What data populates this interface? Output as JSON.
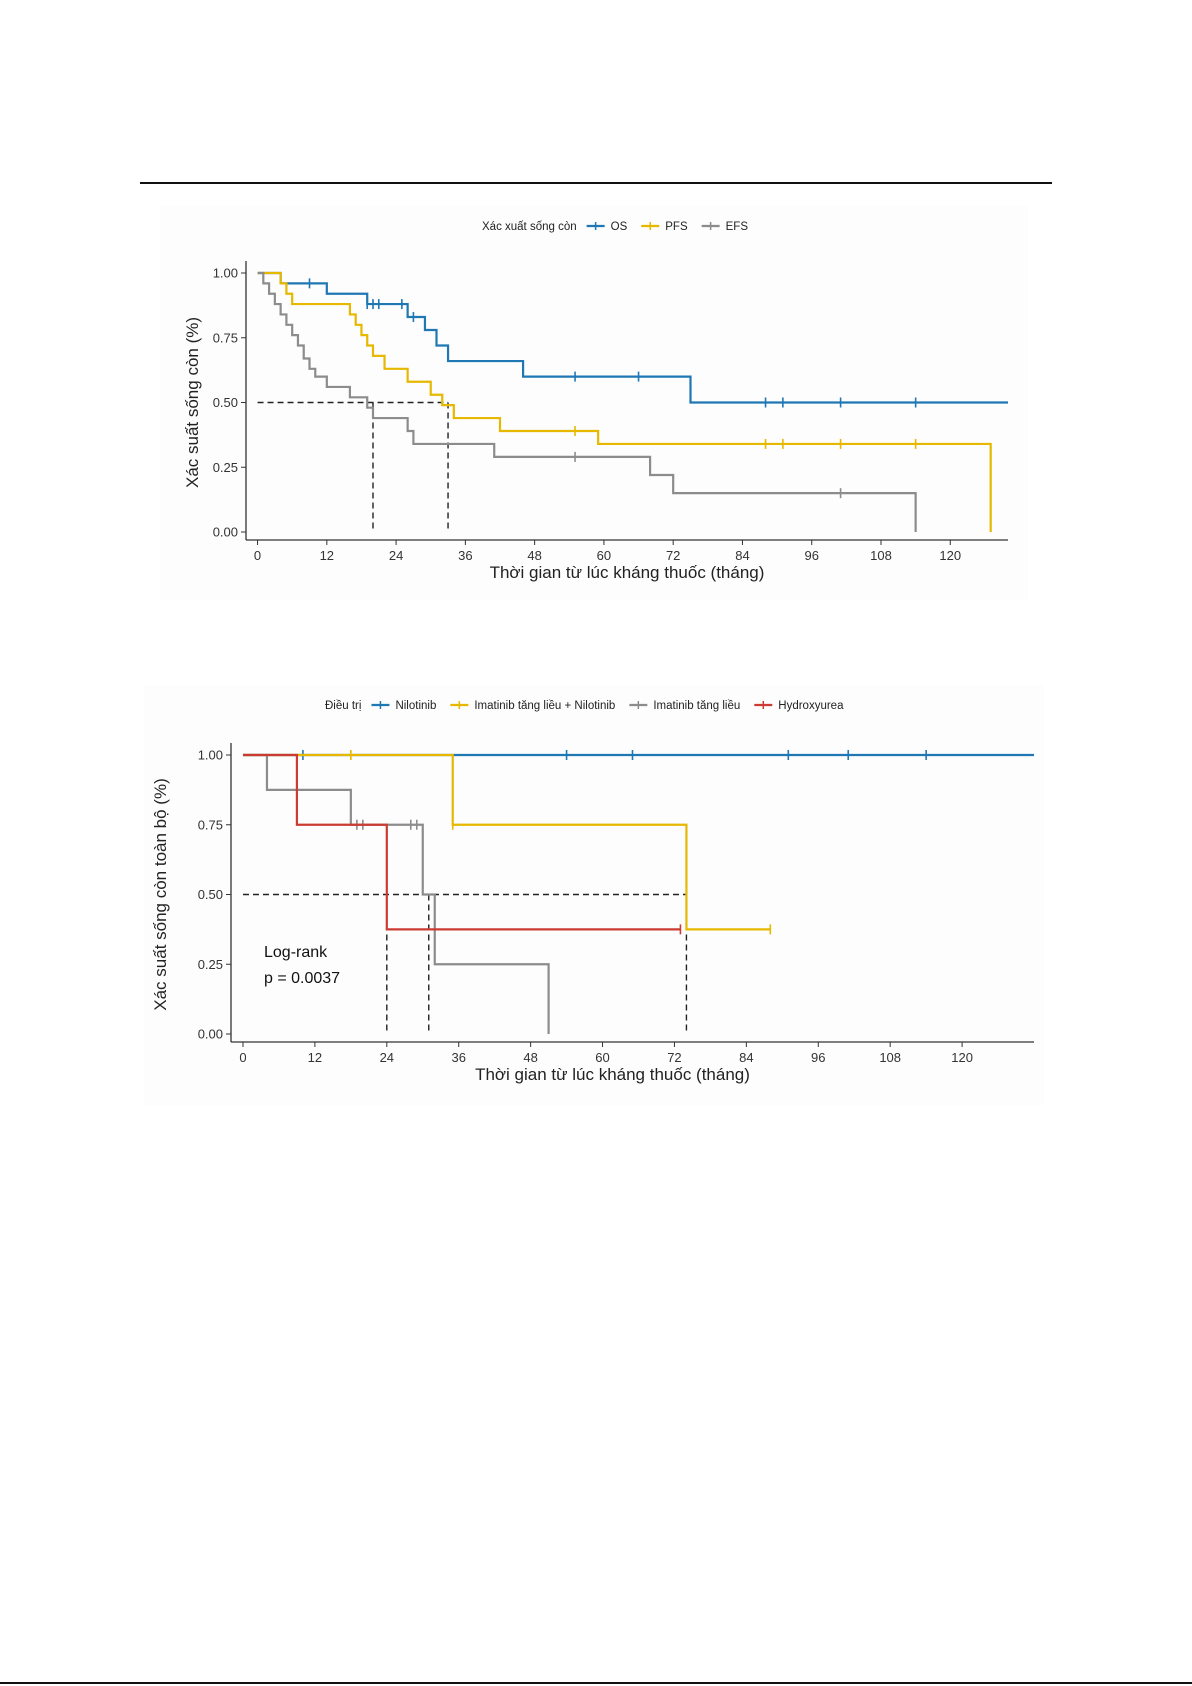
{
  "chart_data": [
    {
      "type": "line",
      "subtype": "kaplan-meier",
      "xlabel": "Thời gian từ lúc kháng thuốc (tháng)",
      "ylabel": "Xác suất sống còn (%)",
      "xlim": [
        -2,
        130
      ],
      "ylim": [
        0,
        1
      ],
      "xticks": [
        0,
        12,
        24,
        36,
        48,
        60,
        72,
        84,
        96,
        108,
        120
      ],
      "yticks": [
        0,
        0.25,
        0.5,
        0.75,
        1.0
      ],
      "ytick_labels": [
        "0.00",
        "0.25",
        "0.50",
        "0.75",
        "1.00"
      ],
      "grid": false,
      "legend": {
        "title": "Xác xuất sống còn",
        "position": "top"
      },
      "median_reference": {
        "y": 0.5,
        "x_medians": [
          20,
          33
        ]
      },
      "series": [
        {
          "name": "OS",
          "color": "#1f77b4",
          "steps": [
            [
              0,
              1.0
            ],
            [
              4,
              0.96
            ],
            [
              12,
              0.92
            ],
            [
              19,
              0.88
            ],
            [
              26,
              0.83
            ],
            [
              29,
              0.78
            ],
            [
              31,
              0.72
            ],
            [
              33,
              0.66
            ],
            [
              46,
              0.6
            ],
            [
              66,
              0.6
            ],
            [
              75,
              0.5
            ],
            [
              130,
              0.5
            ]
          ],
          "censor": [
            9,
            19,
            20,
            21,
            25,
            27,
            55,
            66,
            88,
            91,
            101,
            114
          ]
        },
        {
          "name": "PFS",
          "color": "#e6b800",
          "steps": [
            [
              0,
              1.0
            ],
            [
              4,
              0.96
            ],
            [
              5,
              0.92
            ],
            [
              6,
              0.88
            ],
            [
              16,
              0.84
            ],
            [
              17,
              0.8
            ],
            [
              18,
              0.76
            ],
            [
              19,
              0.72
            ],
            [
              20,
              0.68
            ],
            [
              22,
              0.63
            ],
            [
              26,
              0.58
            ],
            [
              30,
              0.53
            ],
            [
              32,
              0.49
            ],
            [
              34,
              0.44
            ],
            [
              42,
              0.39
            ],
            [
              59,
              0.34
            ],
            [
              127,
              0.34
            ],
            [
              127,
              0.0
            ]
          ],
          "censor": [
            55,
            88,
            91,
            101,
            114
          ]
        },
        {
          "name": "EFS",
          "color": "#8c8c8c",
          "steps": [
            [
              0,
              1.0
            ],
            [
              1,
              0.96
            ],
            [
              2,
              0.92
            ],
            [
              3,
              0.88
            ],
            [
              4,
              0.84
            ],
            [
              5,
              0.8
            ],
            [
              6,
              0.76
            ],
            [
              7,
              0.72
            ],
            [
              8,
              0.67
            ],
            [
              9,
              0.63
            ],
            [
              10,
              0.6
            ],
            [
              12,
              0.56
            ],
            [
              16,
              0.52
            ],
            [
              19,
              0.48
            ],
            [
              20,
              0.44
            ],
            [
              26,
              0.39
            ],
            [
              27,
              0.34
            ],
            [
              41,
              0.29
            ],
            [
              68,
              0.22
            ],
            [
              72,
              0.15
            ],
            [
              114,
              0.15
            ],
            [
              114,
              0.0
            ]
          ],
          "censor": [
            55,
            101
          ]
        }
      ]
    },
    {
      "type": "line",
      "subtype": "kaplan-meier",
      "xlabel": "Thời gian từ lúc kháng thuốc (tháng)",
      "ylabel": "Xác suất sống còn toàn bộ (%)",
      "xlim": [
        -2,
        132
      ],
      "ylim": [
        0,
        1
      ],
      "xticks": [
        0,
        12,
        24,
        36,
        48,
        60,
        72,
        84,
        96,
        108,
        120
      ],
      "yticks": [
        0,
        0.25,
        0.5,
        0.75,
        1.0
      ],
      "ytick_labels": [
        "0.00",
        "0.25",
        "0.50",
        "0.75",
        "1.00"
      ],
      "grid": false,
      "legend": {
        "title": "Điều trị",
        "position": "top"
      },
      "annotation": {
        "line1": "Log-rank",
        "line2": "p = 0.0037"
      },
      "median_reference": {
        "y": 0.5,
        "x_medians": [
          24,
          31,
          74
        ]
      },
      "series": [
        {
          "name": "Nilotinib",
          "color": "#1f77b4",
          "steps": [
            [
              0,
              1.0
            ],
            [
              132,
              1.0
            ]
          ],
          "censor": [
            10,
            54,
            65,
            91,
            101,
            114
          ]
        },
        {
          "name": "Imatinib tăng liều + Nilotinib",
          "color": "#e6b800",
          "steps": [
            [
              0,
              1.0
            ],
            [
              35,
              1.0
            ],
            [
              35,
              0.75
            ],
            [
              74,
              0.75
            ],
            [
              74,
              0.375
            ],
            [
              88,
              0.375
            ]
          ],
          "censor": [
            18,
            35,
            88
          ]
        },
        {
          "name": "Imatinib tăng liều",
          "color": "#8c8c8c",
          "steps": [
            [
              0,
              1.0
            ],
            [
              4,
              1.0
            ],
            [
              4,
              0.875
            ],
            [
              18,
              0.875
            ],
            [
              18,
              0.75
            ],
            [
              30,
              0.75
            ],
            [
              30,
              0.5
            ],
            [
              32,
              0.5
            ],
            [
              32,
              0.25
            ],
            [
              51,
              0.25
            ],
            [
              51,
              0.0
            ]
          ],
          "censor": [
            19,
            20,
            28,
            29
          ]
        },
        {
          "name": "Hydroxyurea",
          "color": "#cc3b33",
          "steps": [
            [
              0,
              1.0
            ],
            [
              9,
              1.0
            ],
            [
              9,
              0.75
            ],
            [
              24,
              0.75
            ],
            [
              24,
              0.375
            ],
            [
              73,
              0.375
            ]
          ],
          "censor": [
            73
          ]
        }
      ]
    }
  ]
}
